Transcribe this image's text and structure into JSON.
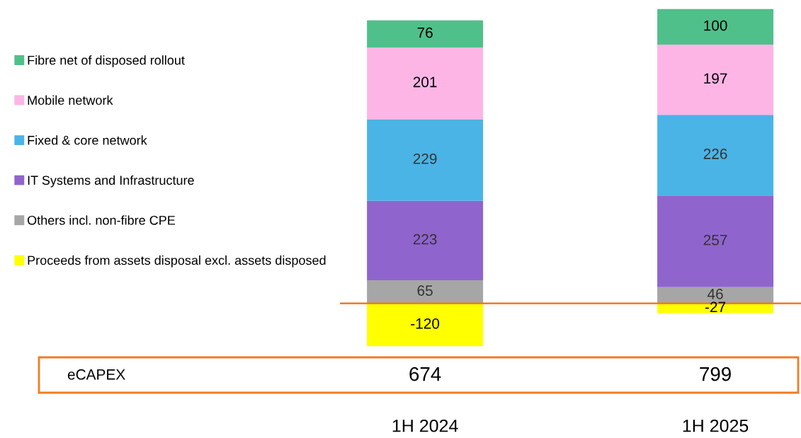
{
  "chart_data": {
    "type": "bar",
    "stacked": true,
    "categories": [
      "1H 2024",
      "1H 2025"
    ],
    "series": [
      {
        "name": "Others incl. non-fibre CPE",
        "color": "#a6a6a6",
        "values": [
          65,
          46
        ]
      },
      {
        "name": "IT Systems and Infrastructure",
        "color": "#9064cd",
        "values": [
          223,
          257
        ]
      },
      {
        "name": "Fixed & core network",
        "color": "#4ab4e6",
        "values": [
          229,
          226
        ]
      },
      {
        "name": "Mobile network",
        "color": "#fdb5e6",
        "values": [
          201,
          197
        ]
      },
      {
        "name": "Fibre net of disposed rollout",
        "color": "#50c08a",
        "values": [
          76,
          100
        ]
      },
      {
        "name": "Proceeds from assets disposal excl. assets disposed",
        "color": "#ffff00",
        "values": [
          -120,
          -27
        ]
      }
    ],
    "data_labels": true,
    "legend": "top left",
    "ref_lines": [
      {
        "axis": "y",
        "value": 0,
        "color": "#f47b20"
      }
    ],
    "annotations": [
      "eCAPEX"
    ],
    "totals": [
      "674",
      "799"
    ]
  }
}
